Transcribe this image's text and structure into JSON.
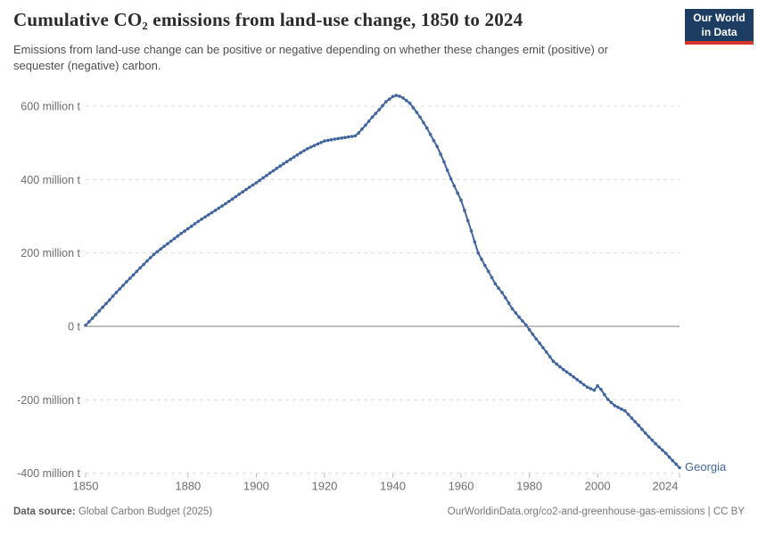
{
  "header": {
    "title": "Cumulative CO₂ emissions from land-use change, 1850 to 2024",
    "subtitle": "Emissions from land-use change can be positive or negative depending on whether these changes emit (positive) or sequester (negative) carbon.",
    "logo_line1": "Our World",
    "logo_line2": "in Data"
  },
  "footer": {
    "source_label": "Data source:",
    "source_value": "Global Carbon Budget (2025)",
    "attribution": "OurWorldinData.org/co2-and-greenhouse-gas-emissions | CC BY"
  },
  "colors": {
    "series_blue": "#41659E",
    "grid": "#dcdcdc",
    "zero_line": "#a8a8a8",
    "tick_label": "#6e6e6e",
    "logo_bg": "#1d3d63",
    "logo_red": "#d8352a"
  },
  "chart_data": {
    "type": "line",
    "title": "Cumulative CO₂ emissions from land-use change, 1850 to 2024",
    "unit": "million t",
    "xlabel": "",
    "ylabel": "",
    "xlim": [
      1850,
      2024
    ],
    "ylim": [
      -400,
      640
    ],
    "grid": "dashed-horizontal",
    "legend_position": "end-of-line-label",
    "x_ticks": [
      1850,
      1880,
      1900,
      1920,
      1940,
      1960,
      1980,
      2000,
      2024
    ],
    "y_ticks": [
      {
        "value": 600,
        "label": "600 million t"
      },
      {
        "value": 400,
        "label": "400 million t"
      },
      {
        "value": 200,
        "label": "200 million t"
      },
      {
        "value": 0,
        "label": "0 t"
      },
      {
        "value": -200,
        "label": "-200 million t"
      },
      {
        "value": -400,
        "label": "-400 million t"
      }
    ],
    "series": [
      {
        "name": "Georgia",
        "color": "#41659E",
        "points": [
          [
            1850,
            3
          ],
          [
            1852,
            22
          ],
          [
            1855,
            52
          ],
          [
            1858,
            82
          ],
          [
            1860,
            102
          ],
          [
            1863,
            131
          ],
          [
            1865,
            150
          ],
          [
            1868,
            178
          ],
          [
            1870,
            196
          ],
          [
            1873,
            218
          ],
          [
            1875,
            232
          ],
          [
            1878,
            253
          ],
          [
            1880,
            266
          ],
          [
            1883,
            286
          ],
          [
            1885,
            298
          ],
          [
            1888,
            316
          ],
          [
            1890,
            328
          ],
          [
            1893,
            347
          ],
          [
            1895,
            360
          ],
          [
            1898,
            379
          ],
          [
            1900,
            391
          ],
          [
            1903,
            411
          ],
          [
            1905,
            424
          ],
          [
            1908,
            443
          ],
          [
            1910,
            455
          ],
          [
            1913,
            473
          ],
          [
            1915,
            484
          ],
          [
            1918,
            497
          ],
          [
            1920,
            505
          ],
          [
            1923,
            510
          ],
          [
            1925,
            513
          ],
          [
            1927,
            516
          ],
          [
            1929,
            519
          ],
          [
            1930,
            527
          ],
          [
            1932,
            548
          ],
          [
            1934,
            570
          ],
          [
            1936,
            590
          ],
          [
            1938,
            612
          ],
          [
            1940,
            626
          ],
          [
            1941,
            629
          ],
          [
            1942,
            627
          ],
          [
            1943,
            622
          ],
          [
            1945,
            608
          ],
          [
            1947,
            583
          ],
          [
            1948,
            570
          ],
          [
            1950,
            540
          ],
          [
            1952,
            506
          ],
          [
            1953,
            490
          ],
          [
            1955,
            448
          ],
          [
            1957,
            402
          ],
          [
            1959,
            363
          ],
          [
            1960,
            344
          ],
          [
            1962,
            288
          ],
          [
            1963,
            260
          ],
          [
            1965,
            200
          ],
          [
            1967,
            166
          ],
          [
            1968,
            150
          ],
          [
            1970,
            116
          ],
          [
            1972,
            92
          ],
          [
            1973,
            78
          ],
          [
            1975,
            48
          ],
          [
            1977,
            25
          ],
          [
            1979,
            4
          ],
          [
            1980,
            -9
          ],
          [
            1982,
            -34
          ],
          [
            1985,
            -70
          ],
          [
            1987,
            -95
          ],
          [
            1990,
            -118
          ],
          [
            1992,
            -131
          ],
          [
            1995,
            -152
          ],
          [
            1997,
            -166
          ],
          [
            1999,
            -174
          ],
          [
            2000,
            -162
          ],
          [
            2001,
            -172
          ],
          [
            2002,
            -186
          ],
          [
            2003,
            -199
          ],
          [
            2005,
            -216
          ],
          [
            2008,
            -230
          ],
          [
            2010,
            -250
          ],
          [
            2012,
            -270
          ],
          [
            2015,
            -301
          ],
          [
            2017,
            -320
          ],
          [
            2020,
            -346
          ],
          [
            2022,
            -366
          ],
          [
            2024,
            -385
          ]
        ]
      }
    ]
  }
}
